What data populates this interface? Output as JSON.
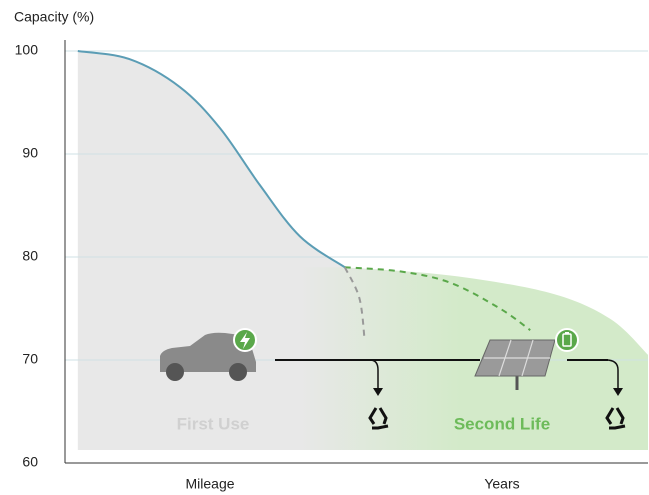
{
  "chart_data": {
    "type": "line",
    "ylabel": "Capacity (%)",
    "x_labels": [
      "Mileage",
      "Years"
    ],
    "annotations": [
      "First Use",
      "Second Life"
    ],
    "xlim": [
      0,
      100
    ],
    "ylim": [
      60,
      100
    ],
    "yticks": [
      60,
      70,
      80,
      90,
      100
    ],
    "grid": true,
    "series": [
      {
        "color": "#5b9db5",
        "area": "#e8e8e8",
        "dash": false,
        "x": [
          2.2,
          11.1,
          19.7,
          26.6,
          33.4,
          40.3,
          48
        ],
        "values": [
          100,
          99.2,
          96.5,
          92.5,
          87,
          82,
          79
        ]
      },
      {
        "color": "#5aa84a",
        "dash": true,
        "x": [
          48,
          57.5,
          66.1,
          74.6,
          79.8
        ],
        "values": [
          79,
          78.6,
          77.5,
          75,
          72.9
        ]
      },
      {
        "color": "#999999",
        "dash": true,
        "x": [
          48,
          50.5,
          51.4
        ],
        "values": [
          79,
          76,
          71.9
        ]
      },
      {
        "color": "none",
        "area": "#d3eac9",
        "dash": false,
        "x": [
          48,
          66.1,
          83.2,
          93.5,
          100
        ],
        "values": [
          79,
          78.2,
          76.5,
          74,
          70.5
        ]
      }
    ]
  }
}
